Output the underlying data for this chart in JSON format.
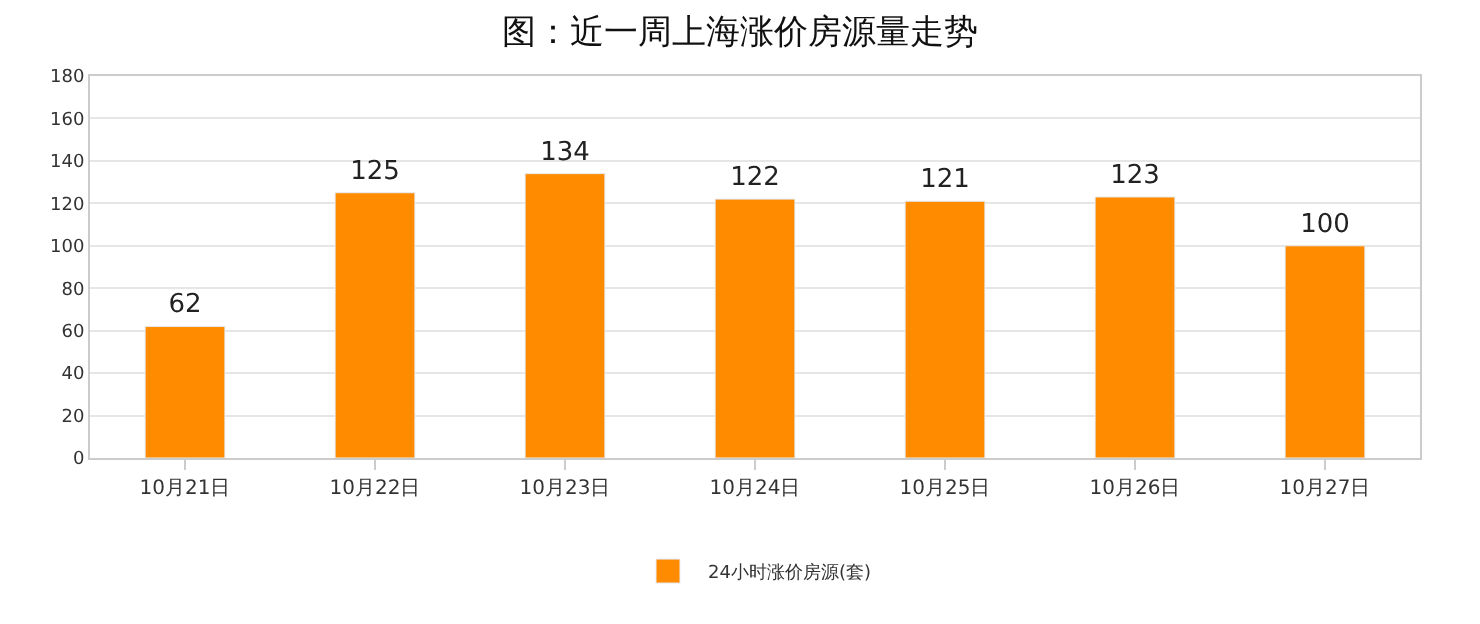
{
  "chart_data": {
    "type": "bar",
    "title": "图：近一周上海涨价房源量走势",
    "categories": [
      "10月21日",
      "10月22日",
      "10月23日",
      "10月24日",
      "10月25日",
      "10月26日",
      "10月27日"
    ],
    "series": [
      {
        "name": "24小时涨价房源(套)",
        "color": "#ff8c00",
        "values": [
          62,
          125,
          134,
          122,
          121,
          123,
          100
        ]
      }
    ],
    "ylim": [
      0,
      180
    ],
    "yticks": [
      0,
      20,
      40,
      60,
      80,
      100,
      120,
      140,
      160,
      180
    ],
    "grid": "y",
    "legend": "bottom",
    "data_labels": true
  }
}
